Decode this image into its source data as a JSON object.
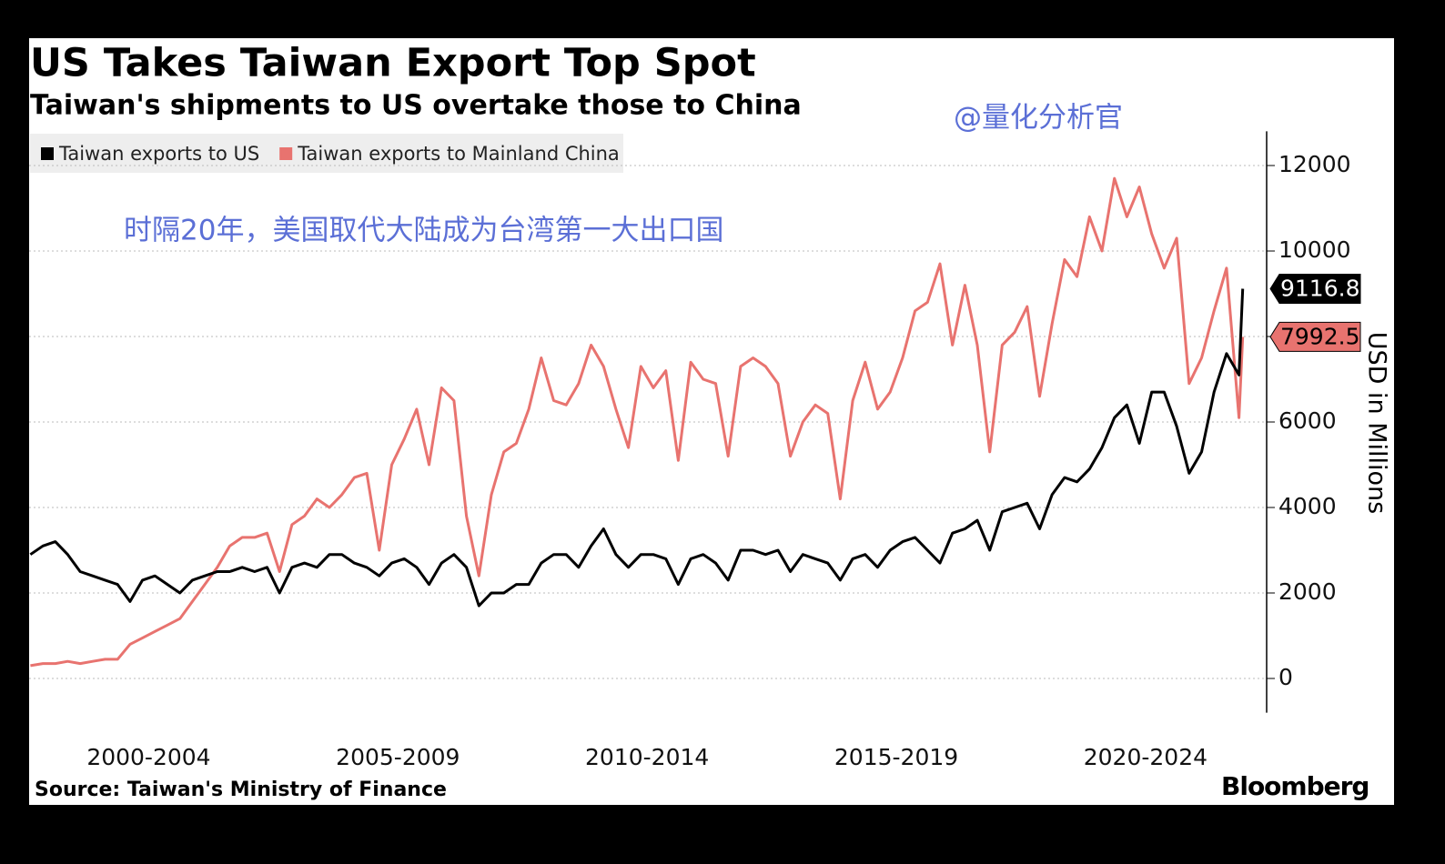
{
  "chart_data": {
    "type": "line",
    "title": "US Takes Taiwan Export Top Spot",
    "subtitle": "Taiwan's shipments to US overtake those to China",
    "y_label": "USD in Millions",
    "source": "Source: Taiwan's Ministry of Finance",
    "brand": "Bloomberg",
    "annotations": [
      "@量化分析官",
      "时隔20年，美国取代大陆成为台湾第一大出口国"
    ],
    "grid": true,
    "legend": "top-left",
    "xlim": [
      2000.1,
      2024.93
    ],
    "xticks": [
      {
        "value": 2002.5,
        "label": "2000-2004"
      },
      {
        "value": 2007.5,
        "label": "2005-2009"
      },
      {
        "value": 2012.5,
        "label": "2010-2014"
      },
      {
        "value": 2017.5,
        "label": "2015-2019"
      },
      {
        "value": 2022.5,
        "label": "2020-2024"
      }
    ],
    "ylim": [
      -800,
      12800
    ],
    "yticks": [
      0,
      2000,
      4000,
      6000,
      8000,
      10000,
      12000
    ],
    "x": [
      2000.125,
      2000.375,
      2000.625,
      2000.875,
      2001.125,
      2001.375,
      2001.625,
      2001.875,
      2002.125,
      2002.375,
      2002.625,
      2002.875,
      2003.125,
      2003.375,
      2003.625,
      2003.875,
      2004.125,
      2004.375,
      2004.625,
      2004.875,
      2005.125,
      2005.375,
      2005.625,
      2005.875,
      2006.125,
      2006.375,
      2006.625,
      2006.875,
      2007.125,
      2007.375,
      2007.625,
      2007.875,
      2008.125,
      2008.375,
      2008.625,
      2008.875,
      2009.125,
      2009.375,
      2009.625,
      2009.875,
      2010.125,
      2010.375,
      2010.625,
      2010.875,
      2011.125,
      2011.375,
      2011.625,
      2011.875,
      2012.125,
      2012.375,
      2012.625,
      2012.875,
      2013.125,
      2013.375,
      2013.625,
      2013.875,
      2014.125,
      2014.375,
      2014.625,
      2014.875,
      2015.125,
      2015.375,
      2015.625,
      2015.875,
      2016.125,
      2016.375,
      2016.625,
      2016.875,
      2017.125,
      2017.375,
      2017.625,
      2017.875,
      2018.125,
      2018.375,
      2018.625,
      2018.875,
      2019.125,
      2019.375,
      2019.625,
      2019.875,
      2020.125,
      2020.375,
      2020.625,
      2020.875,
      2021.125,
      2021.375,
      2021.625,
      2021.875,
      2022.125,
      2022.375,
      2022.625,
      2022.875,
      2023.125,
      2023.375,
      2023.625,
      2023.875,
      2024.125,
      2024.375,
      2024.45
    ],
    "series": [
      {
        "name": "Taiwan exports to US",
        "color": "#000000",
        "values": [
          2900,
          3100,
          3200,
          2900,
          2500,
          2400,
          2300,
          2200,
          1800,
          2300,
          2400,
          2200,
          2000,
          2300,
          2400,
          2500,
          2500,
          2600,
          2500,
          2600,
          2000,
          2600,
          2700,
          2600,
          2900,
          2900,
          2700,
          2600,
          2400,
          2700,
          2800,
          2600,
          2200,
          2700,
          2900,
          2600,
          1700,
          2000,
          2000,
          2200,
          2200,
          2700,
          2900,
          2900,
          2600,
          3100,
          3500,
          2900,
          2600,
          2900,
          2900,
          2800,
          2200,
          2800,
          2900,
          2700,
          2300,
          3000,
          3000,
          2900,
          3000,
          2500,
          2900,
          2800,
          2700,
          2300,
          2800,
          2900,
          2600,
          3000,
          3200,
          3300,
          3000,
          2700,
          3400,
          3500,
          3700,
          3000,
          3900,
          4000,
          4100,
          3500,
          4300,
          4700,
          4600,
          4900,
          5400,
          6100,
          6400,
          5500,
          6700,
          6700,
          5900,
          4800,
          5300,
          6700,
          7600,
          7100,
          9116.8
        ]
      },
      {
        "name": "Taiwan exports to Mainland China",
        "color": "#e8736f",
        "values": [
          300,
          350,
          350,
          400,
          350,
          400,
          450,
          450,
          800,
          950,
          1100,
          1250,
          1400,
          1800,
          2200,
          2600,
          3100,
          3300,
          3300,
          3400,
          2500,
          3600,
          3800,
          4200,
          4000,
          4300,
          4700,
          4800,
          3000,
          5000,
          5600,
          6300,
          5000,
          6800,
          6500,
          3800,
          2400,
          4300,
          5300,
          5500,
          6300,
          7500,
          6500,
          6400,
          6900,
          7800,
          7300,
          6300,
          5400,
          7300,
          6800,
          7200,
          5100,
          7400,
          7000,
          6900,
          5200,
          7300,
          7500,
          7300,
          6900,
          5200,
          6000,
          6400,
          6200,
          4200,
          6500,
          7400,
          6300,
          6700,
          7500,
          8600,
          8800,
          9700,
          7800,
          9200,
          7800,
          5300,
          7800,
          8100,
          8700,
          6600,
          8300,
          9800,
          9400,
          10800,
          10000,
          11700,
          10800,
          11500,
          10400,
          9600,
          10300,
          6900,
          7500,
          8600,
          9600,
          6100,
          7992.5
        ]
      }
    ]
  }
}
